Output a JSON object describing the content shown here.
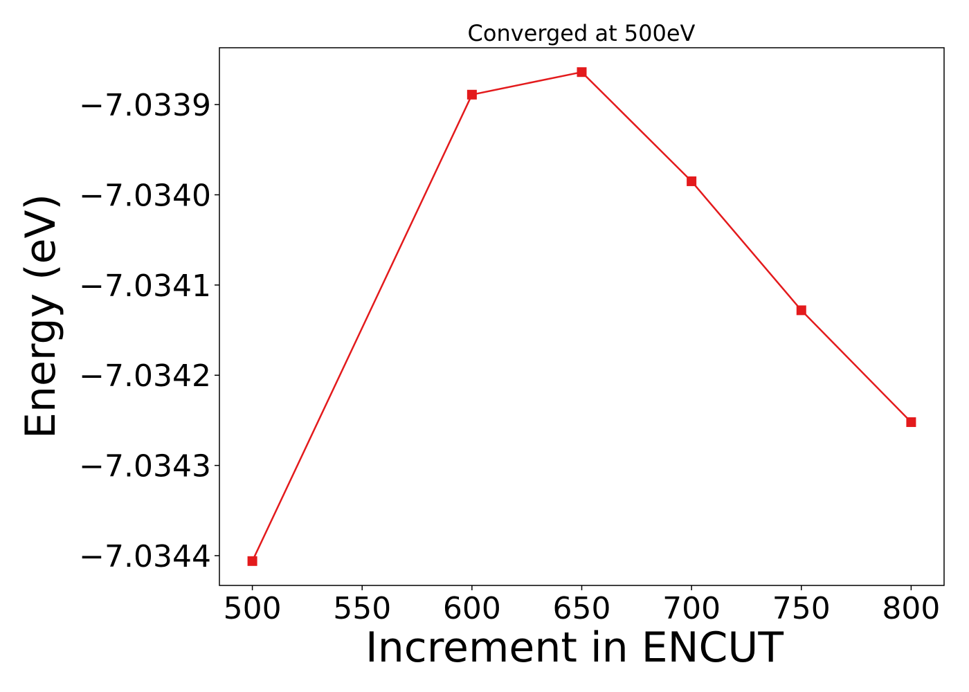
{
  "chart_data": {
    "type": "line",
    "title": "Converged at 500eV",
    "xlabel": "Increment in ENCUT",
    "ylabel": "Energy (eV)",
    "x": [
      500,
      600,
      650,
      700,
      750,
      800
    ],
    "series": [
      {
        "values": [
          -7.034406,
          -7.033889,
          -7.033864,
          -7.033985,
          -7.034128,
          -7.034252
        ],
        "color": "#e31a1c",
        "marker": "square"
      }
    ],
    "xlim": [
      485,
      815
    ],
    "ylim": [
      -7.034433,
      -7.033837
    ],
    "xticks": [
      500,
      550,
      600,
      650,
      700,
      750,
      800
    ],
    "xtick_labels": [
      "500",
      "550",
      "600",
      "650",
      "700",
      "750",
      "800"
    ],
    "yticks": [
      -7.0339,
      -7.034,
      -7.0341,
      -7.0342,
      -7.0343,
      -7.0344
    ],
    "ytick_labels": [
      "−7.0339",
      "−7.0340",
      "−7.0341",
      "−7.0342",
      "−7.0343",
      "−7.0344"
    ],
    "grid": false,
    "legend": false
  }
}
